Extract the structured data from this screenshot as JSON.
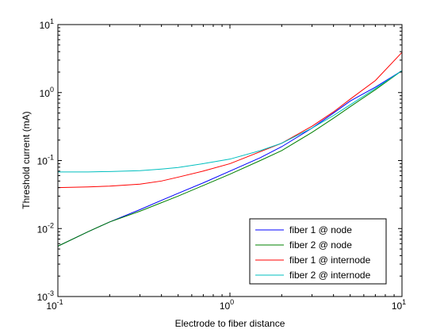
{
  "chart_data": {
    "type": "line",
    "title": "",
    "xlabel": "Electrode to fiber distance",
    "ylabel": "Threshold current (mA)",
    "xscale": "log",
    "yscale": "log",
    "xlim": [
      0.1,
      10
    ],
    "ylim": [
      0.001,
      10
    ],
    "xticks": [
      {
        "value": 0.1,
        "base": "10",
        "exp": "-1"
      },
      {
        "value": 1,
        "base": "10",
        "exp": "0"
      },
      {
        "value": 10,
        "base": "10",
        "exp": "1"
      }
    ],
    "yticks": [
      {
        "value": 0.001,
        "base": "10",
        "exp": "-3"
      },
      {
        "value": 0.01,
        "base": "10",
        "exp": "-2"
      },
      {
        "value": 0.1,
        "base": "10",
        "exp": "-1"
      },
      {
        "value": 1,
        "base": "10",
        "exp": "0"
      },
      {
        "value": 10,
        "base": "10",
        "exp": "1"
      }
    ],
    "grid": false,
    "legend_position": "bottom-right",
    "x": [
      0.1,
      0.15,
      0.2,
      0.3,
      0.4,
      0.5,
      0.7,
      1.0,
      1.5,
      2.0,
      3.0,
      4.0,
      5.0,
      7.0,
      10.0
    ],
    "series": [
      {
        "name": "fiber 1 @ node",
        "color": "#0000ff",
        "values": [
          0.0055,
          0.009,
          0.0125,
          0.019,
          0.026,
          0.033,
          0.047,
          0.07,
          0.11,
          0.16,
          0.3,
          0.5,
          0.75,
          1.2,
          2.1
        ]
      },
      {
        "name": "fiber 2 @ node",
        "color": "#008000",
        "values": [
          0.0055,
          0.009,
          0.0125,
          0.018,
          0.024,
          0.03,
          0.043,
          0.063,
          0.1,
          0.14,
          0.26,
          0.42,
          0.62,
          1.1,
          2.1
        ]
      },
      {
        "name": "fiber 1 @ internode",
        "color": "#ff0000",
        "values": [
          0.04,
          0.041,
          0.042,
          0.045,
          0.05,
          0.057,
          0.07,
          0.09,
          0.135,
          0.18,
          0.32,
          0.52,
          0.8,
          1.5,
          3.9
        ]
      },
      {
        "name": "fiber 2 @ internode",
        "color": "#00bfbf",
        "values": [
          0.068,
          0.068,
          0.069,
          0.071,
          0.075,
          0.079,
          0.09,
          0.105,
          0.14,
          0.18,
          0.3,
          0.46,
          0.66,
          1.15,
          2.1
        ]
      }
    ]
  }
}
